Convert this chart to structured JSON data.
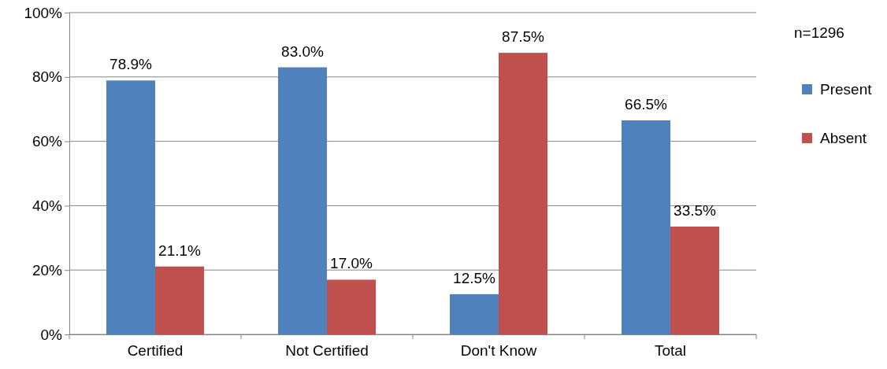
{
  "chart_data": {
    "type": "bar",
    "categories": [
      "Certified",
      "Not Certified",
      "Don't Know",
      "Total"
    ],
    "series": [
      {
        "name": "Present",
        "color": "#4f81bd",
        "values": [
          78.9,
          83.0,
          12.5,
          66.5
        ],
        "value_labels": [
          "78.9%",
          "83.0%",
          "12.5%",
          "66.5%"
        ]
      },
      {
        "name": "Absent",
        "color": "#c0504d",
        "values": [
          21.1,
          17.0,
          87.5,
          33.5
        ],
        "value_labels": [
          "21.1%",
          "17.0%",
          "87.5%",
          "33.5%"
        ]
      }
    ],
    "ylim": [
      0,
      100
    ],
    "yticks": [
      {
        "value": 0,
        "label": "0%"
      },
      {
        "value": 20,
        "label": "20%"
      },
      {
        "value": 40,
        "label": "40%"
      },
      {
        "value": 60,
        "label": "60%"
      },
      {
        "value": 80,
        "label": "80%"
      },
      {
        "value": 100,
        "label": "100%"
      }
    ],
    "grid": "y",
    "legend": "right",
    "annotations": [
      "n=1296"
    ]
  }
}
